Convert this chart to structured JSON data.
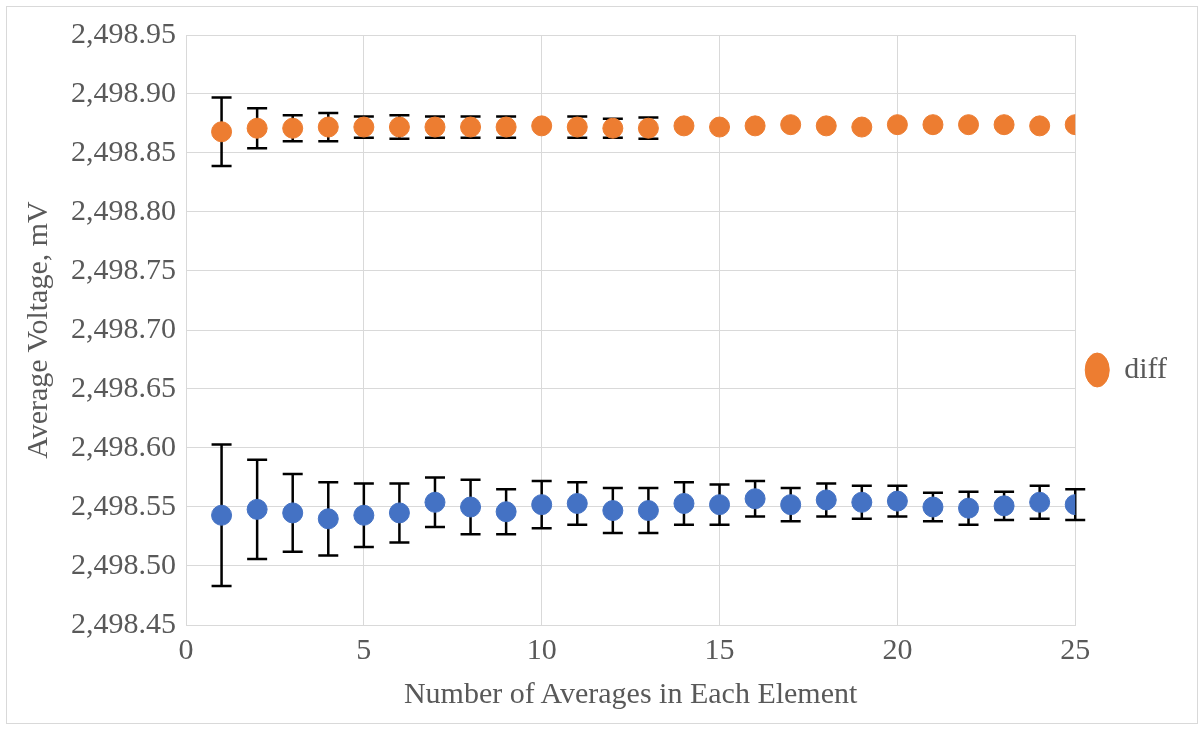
{
  "chart_data": {
    "type": "scatter",
    "xlabel": "Number of Averages in Each Element",
    "ylabel": "Average Voltage, mV",
    "x": [
      1,
      2,
      3,
      4,
      5,
      6,
      7,
      8,
      9,
      10,
      11,
      12,
      13,
      14,
      15,
      16,
      17,
      18,
      19,
      20,
      21,
      22,
      23,
      24,
      25
    ],
    "series": [
      {
        "name": "diff",
        "color": "#ed7d31",
        "values": [
          2498.868,
          2498.871,
          2498.871,
          2498.872,
          2498.872,
          2498.872,
          2498.872,
          2498.872,
          2498.872,
          2498.873,
          2498.872,
          2498.871,
          2498.871,
          2498.873,
          2498.872,
          2498.873,
          2498.874,
          2498.873,
          2498.872,
          2498.874,
          2498.874,
          2498.874,
          2498.874,
          2498.873,
          2498.874
        ],
        "errors": [
          0.029,
          0.017,
          0.011,
          0.012,
          0.009,
          0.01,
          0.009,
          0.009,
          0.009,
          null,
          0.009,
          0.008,
          0.009,
          null,
          null,
          null,
          null,
          null,
          null,
          null,
          null,
          null,
          null,
          null,
          null
        ]
      },
      {
        "color": "#4472c4",
        "values": [
          2498.543,
          2498.548,
          2498.545,
          2498.54,
          2498.543,
          2498.545,
          2498.554,
          2498.55,
          2498.546,
          2498.552,
          2498.553,
          2498.547,
          2498.547,
          2498.553,
          2498.552,
          2498.557,
          2498.552,
          2498.556,
          2498.554,
          2498.555,
          2498.55,
          2498.549,
          2498.551,
          2498.554,
          2498.552
        ],
        "errors": [
          0.06,
          0.042,
          0.033,
          0.031,
          0.027,
          0.025,
          0.021,
          0.023,
          0.019,
          0.02,
          0.018,
          0.019,
          0.019,
          0.018,
          0.017,
          0.015,
          0.014,
          0.014,
          0.014,
          0.013,
          0.012,
          0.014,
          0.012,
          0.014,
          0.013
        ]
      }
    ],
    "xlim": [
      0,
      25
    ],
    "xticks": [
      0,
      5,
      10,
      15,
      20,
      25
    ],
    "ylim": [
      2498.45,
      2498.95
    ],
    "yticks": [
      {
        "value": 2498.45,
        "label": "2,498.45"
      },
      {
        "value": 2498.5,
        "label": "2,498.50"
      },
      {
        "value": 2498.55,
        "label": "2,498.55"
      },
      {
        "value": 2498.6,
        "label": "2,498.60"
      },
      {
        "value": 2498.65,
        "label": "2,498.65"
      },
      {
        "value": 2498.7,
        "label": "2,498.70"
      },
      {
        "value": 2498.75,
        "label": "2,498.75"
      },
      {
        "value": 2498.8,
        "label": "2,498.80"
      },
      {
        "value": 2498.85,
        "label": "2,498.85"
      },
      {
        "value": 2498.9,
        "label": "2,498.90"
      },
      {
        "value": 2498.95,
        "label": "2,498.95"
      }
    ],
    "grid": true,
    "legend": "right",
    "marker": "circle"
  }
}
